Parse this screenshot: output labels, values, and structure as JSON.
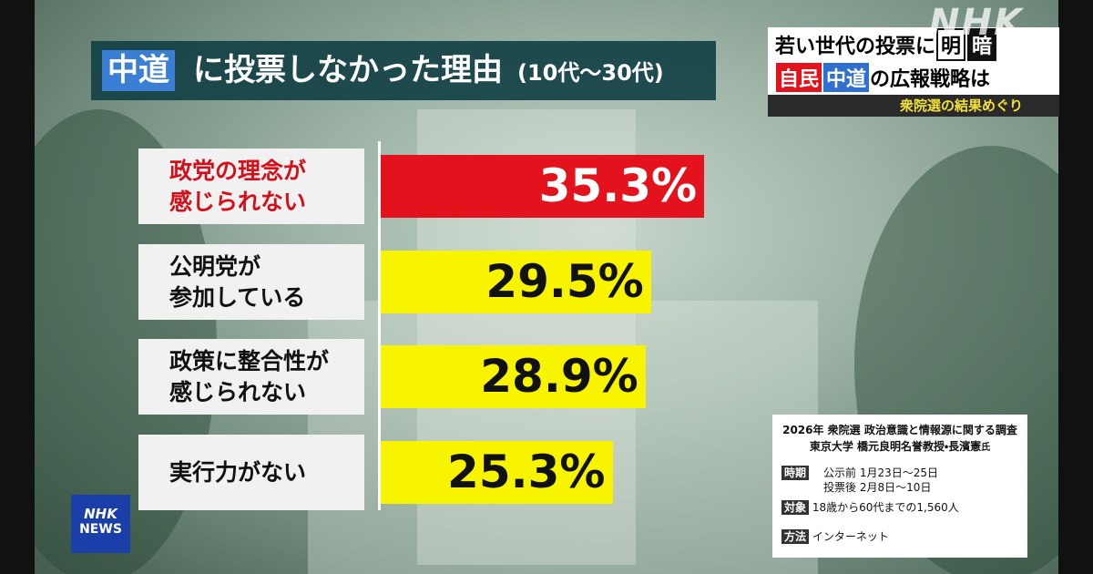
{
  "header": {
    "title_highlight": "中道",
    "title": "に投票しなかった理由",
    "title_sub": "(10代〜30代)"
  },
  "chart_data": {
    "type": "bar",
    "orientation": "horizontal",
    "categories": [
      "政党の理念が\n感じられない",
      "公明党が\n参加している",
      "政策に整合性が\n感じられない",
      "実行力がない"
    ],
    "values": [
      35.3,
      29.5,
      28.9,
      25.3
    ],
    "value_labels": [
      "35.3%",
      "29.5%",
      "28.9%",
      "25.3%"
    ],
    "colors": [
      "#e3121c",
      "#f8f400",
      "#f8f400",
      "#f8f400"
    ],
    "label_colors": [
      "#d3101a",
      "#111111",
      "#111111",
      "#111111"
    ],
    "value_label_colors": [
      "#ffffff",
      "#111111",
      "#111111",
      "#111111"
    ]
  },
  "topic": {
    "line1": "若い世代の投票に",
    "bright": "明",
    "dark": "暗",
    "party1": "自民",
    "party2": "中道",
    "line2": "の広報戦略は",
    "line3": "衆院選の結果めぐり"
  },
  "source": {
    "title": "2026年 衆院選 政治意識と情報源に関する調査",
    "author": "東京大学 橋元良明名誉教授・長濱憲",
    "honorific": "氏",
    "period_label": "時期",
    "period_before": "公示前 1月23日～25日",
    "period_after": "投票後 2月8日～10日",
    "target_label": "対象",
    "target": "18歳から60代までの1,560人",
    "method_label": "方法",
    "method": "インターネット"
  },
  "logos": {
    "corner": "NHK",
    "news_top": "NHK",
    "news_bottom": "NEWS"
  }
}
